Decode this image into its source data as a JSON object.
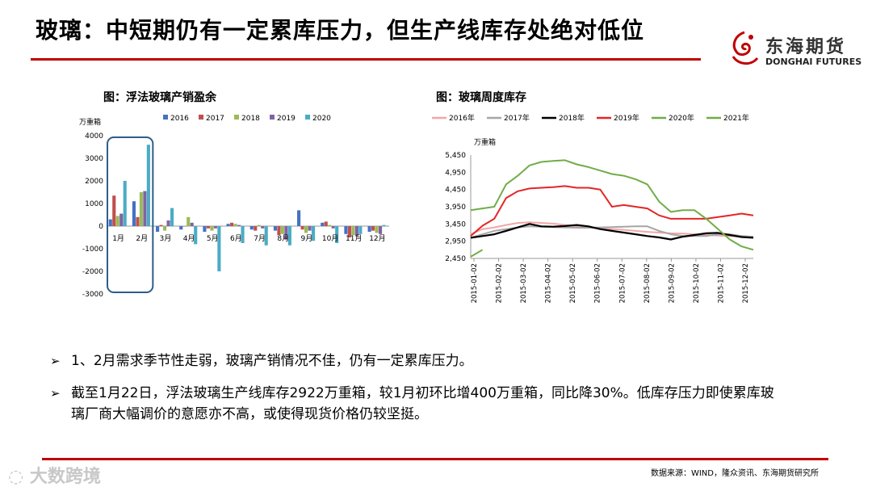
{
  "header": {
    "title": "玻璃：中短期仍有一定累库压力，但生产线库存处绝对低位"
  },
  "logo": {
    "name_cn": "东海期货",
    "name_en": "DONGHAI FUTURES"
  },
  "chart_data": [
    {
      "type": "bar",
      "title": "图：浮法玻璃产销盈余",
      "unit_label": "万重箱",
      "categories": [
        "1月",
        "2月",
        "3月",
        "4月",
        "5月",
        "6月",
        "7月",
        "8月",
        "9月",
        "10月",
        "11月",
        "12月"
      ],
      "series": [
        {
          "name": "2016",
          "color": "#4472c4",
          "values": [
            300,
            1100,
            -250,
            -150,
            -250,
            100,
            -150,
            -200,
            700,
            150,
            -350,
            -250
          ]
        },
        {
          "name": "2017",
          "color": "#c0504d",
          "values": [
            1350,
            400,
            50,
            0,
            -100,
            150,
            -200,
            -400,
            -150,
            200,
            -500,
            -200
          ]
        },
        {
          "name": "2018",
          "color": "#9bbb59",
          "values": [
            450,
            1500,
            -200,
            400,
            -200,
            100,
            50,
            -350,
            -300,
            50,
            -400,
            -300
          ]
        },
        {
          "name": "2019",
          "color": "#8064a2",
          "values": [
            550,
            1550,
            250,
            150,
            -100,
            50,
            -100,
            -600,
            -200,
            -100,
            -450,
            -350
          ]
        },
        {
          "name": "2020",
          "color": "#4bacc6",
          "values": [
            2000,
            3600,
            800,
            -800,
            -2000,
            -750,
            -850,
            -850,
            -650,
            -750,
            -350,
            50
          ]
        }
      ],
      "yticks": [
        "4000",
        "3000",
        "2000",
        "1000",
        "0",
        "-1000",
        "-2000",
        "-3000"
      ],
      "ylim": [
        -3000,
        4000
      ],
      "legend": "top"
    },
    {
      "type": "line",
      "title": "图：玻璃周度库存",
      "unit_label": "万重箱",
      "x_labels": [
        "2015-01-02",
        "2015-02-02",
        "2015-03-02",
        "2015-04-02",
        "2015-05-02",
        "2015-06-02",
        "2015-07-02",
        "2015-08-02",
        "2015-09-02",
        "2015-10-02",
        "2015-11-02",
        "2015-12-02"
      ],
      "yticks": [
        "5,450",
        "4,950",
        "4,450",
        "3,950",
        "3,450",
        "2,950",
        "2,450"
      ],
      "ylim": [
        2450,
        5450
      ],
      "legend": "top",
      "series": [
        {
          "name": "2016年",
          "color": "#f4a6a6",
          "values": [
            3150,
            3300,
            3350,
            3420,
            3480,
            3500,
            3480,
            3460,
            3420,
            3380,
            3350,
            3320,
            3300,
            3280,
            3250,
            3220,
            3200,
            3180,
            3170,
            3150,
            3130,
            3110,
            3100,
            3090,
            3080
          ]
        },
        {
          "name": "2017年",
          "color": "#a6a6a6",
          "values": [
            3050,
            3150,
            3250,
            3300,
            3350,
            3380,
            3370,
            3360,
            3350,
            3340,
            3340,
            3350,
            3360,
            3370,
            3380,
            3380,
            3250,
            3150,
            3100,
            3100,
            3100,
            3150,
            3150,
            3100,
            3080
          ]
        },
        {
          "name": "2018年",
          "color": "#000000",
          "values": [
            3050,
            3100,
            3150,
            3250,
            3350,
            3450,
            3380,
            3370,
            3390,
            3420,
            3380,
            3300,
            3250,
            3200,
            3150,
            3100,
            3060,
            3000,
            3080,
            3130,
            3180,
            3190,
            3130,
            3070,
            3050
          ]
        },
        {
          "name": "2019年",
          "color": "#e32626",
          "values": [
            3100,
            3400,
            3600,
            4200,
            4400,
            4480,
            4500,
            4520,
            4550,
            4500,
            4500,
            4450,
            3950,
            4000,
            3950,
            3900,
            3700,
            3600,
            3600,
            3600,
            3600,
            3650,
            3700,
            3750,
            3700
          ]
        },
        {
          "name": "2020年",
          "color": "#70ad47",
          "values": [
            3850,
            3900,
            3950,
            4600,
            4850,
            5150,
            5250,
            5280,
            5300,
            5180,
            5100,
            5000,
            4900,
            4850,
            4750,
            4600,
            4100,
            3800,
            3850,
            3850,
            3600,
            3300,
            3000,
            2800,
            2700
          ]
        },
        {
          "name": "2021年",
          "color": "#70ad47",
          "values": [
            2500,
            2700
          ]
        }
      ]
    }
  ],
  "bullets": [
    {
      "text": "1、2月需求季节性走弱，玻璃产销情况不佳，仍有一定累库压力。"
    },
    {
      "text": "截至1月22日，浮法玻璃生产线库存2922万重箱，较1月初环比增400万重箱，同比降30%。低库存压力即使累库玻璃厂商大幅调价的意愿亦不高，或使得现货价格仍较坚挺。"
    }
  ],
  "footer": {
    "source": "数据来源：WIND，隆众资讯、东海期货研究所",
    "watermark": "大数跨境"
  }
}
